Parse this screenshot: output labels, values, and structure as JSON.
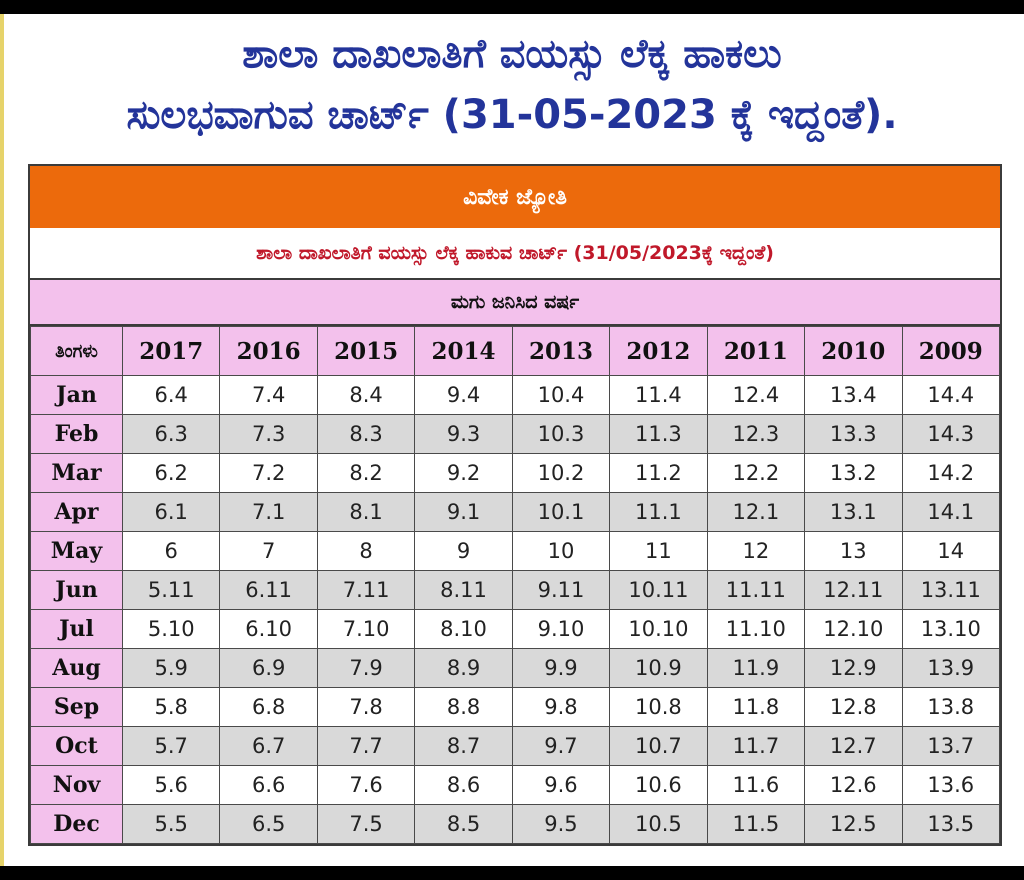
{
  "heading": {
    "line1": "ಶಾಲಾ ದಾಖಲಾತಿಗೆ ವಯಸ್ಸು ಲೆಕ್ಕ ಹಾಕಲು",
    "line2": "ಸುಲಭವಾಗುವ ಚಾರ್ಟ್ (31-05-2023 ಕ್ಕೆ ಇದ್ದಂತೆ)."
  },
  "chart": {
    "banner": "ವಿವೇಕ ಜ್ಯೋತಿ",
    "subtitle": "ಶಾಲಾ ದಾಖಲಾತಿಗೆ ವಯಸ್ಸು ಲೆಕ್ಕ ಹಾಕುವ ಚಾರ್ಟ್ (31/05/2023ಕ್ಕೆ ಇದ್ದಂತೆ)",
    "year_band": "ಮಗು ಜನಿಸಿದ ವರ್ಷ",
    "month_header": "ತಿಂಗಳು",
    "years": [
      "2017",
      "2016",
      "2015",
      "2014",
      "2013",
      "2012",
      "2011",
      "2010",
      "2009"
    ],
    "rows": [
      {
        "month": "Jan",
        "values": [
          "6.4",
          "7.4",
          "8.4",
          "9.4",
          "10.4",
          "11.4",
          "12.4",
          "13.4",
          "14.4"
        ]
      },
      {
        "month": "Feb",
        "values": [
          "6.3",
          "7.3",
          "8.3",
          "9.3",
          "10.3",
          "11.3",
          "12.3",
          "13.3",
          "14.3"
        ]
      },
      {
        "month": "Mar",
        "values": [
          "6.2",
          "7.2",
          "8.2",
          "9.2",
          "10.2",
          "11.2",
          "12.2",
          "13.2",
          "14.2"
        ]
      },
      {
        "month": "Apr",
        "values": [
          "6.1",
          "7.1",
          "8.1",
          "9.1",
          "10.1",
          "11.1",
          "12.1",
          "13.1",
          "14.1"
        ]
      },
      {
        "month": "May",
        "values": [
          "6",
          "7",
          "8",
          "9",
          "10",
          "11",
          "12",
          "13",
          "14"
        ]
      },
      {
        "month": "Jun",
        "values": [
          "5.11",
          "6.11",
          "7.11",
          "8.11",
          "9.11",
          "10.11",
          "11.11",
          "12.11",
          "13.11"
        ]
      },
      {
        "month": "Jul",
        "values": [
          "5.10",
          "6.10",
          "7.10",
          "8.10",
          "9.10",
          "10.10",
          "11.10",
          "12.10",
          "13.10"
        ]
      },
      {
        "month": "Aug",
        "values": [
          "5.9",
          "6.9",
          "7.9",
          "8.9",
          "9.9",
          "10.9",
          "11.9",
          "12.9",
          "13.9"
        ]
      },
      {
        "month": "Sep",
        "values": [
          "5.8",
          "6.8",
          "7.8",
          "8.8",
          "9.8",
          "10.8",
          "11.8",
          "12.8",
          "13.8"
        ]
      },
      {
        "month": "Oct",
        "values": [
          "5.7",
          "6.7",
          "7.7",
          "8.7",
          "9.7",
          "10.7",
          "11.7",
          "12.7",
          "13.7"
        ]
      },
      {
        "month": "Nov",
        "values": [
          "5.6",
          "6.6",
          "7.6",
          "8.6",
          "9.6",
          "10.6",
          "11.6",
          "12.6",
          "13.6"
        ]
      },
      {
        "month": "Dec",
        "values": [
          "5.5",
          "6.5",
          "7.5",
          "8.5",
          "9.5",
          "10.5",
          "11.5",
          "12.5",
          "13.5"
        ]
      }
    ]
  },
  "colors": {
    "heading": "#23349a",
    "banner": "#ec6a0c",
    "subtitle": "#c0182a",
    "header_bg": "#f3c1ec",
    "stripe": "#d9d9d9"
  }
}
